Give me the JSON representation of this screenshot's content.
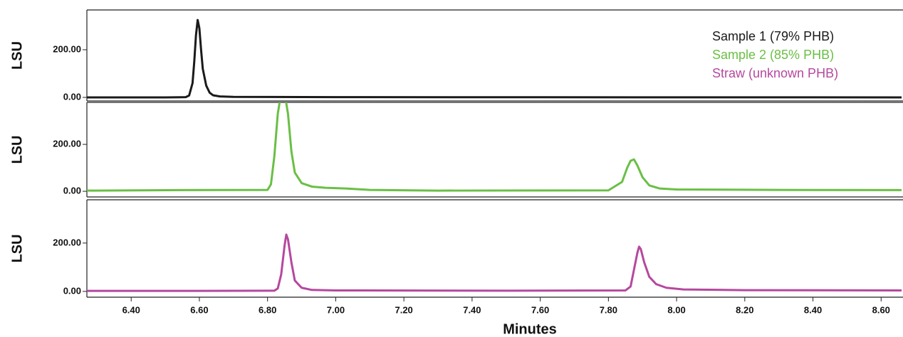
{
  "chart_data": [
    {
      "type": "line",
      "ylabel": "LSU",
      "legend": "upper right",
      "xlim": [
        6.27,
        8.66
      ],
      "ylim": [
        -15,
        367
      ],
      "yticks": [
        {
          "value": 0,
          "label": "0.00"
        },
        {
          "value": 200,
          "label": "200.00"
        }
      ],
      "x": [
        6.27,
        6.5,
        6.56,
        6.57,
        6.58,
        6.585,
        6.59,
        6.595,
        6.6,
        6.605,
        6.61,
        6.62,
        6.63,
        6.64,
        6.66,
        6.7,
        7.0,
        8.66
      ],
      "series": [
        {
          "name": "Sample 1 (79% PHB)",
          "color": "#1a1a1a",
          "values": [
            0,
            0,
            1,
            8,
            60,
            150,
            260,
            325,
            290,
            200,
            120,
            50,
            20,
            9,
            4,
            2,
            1,
            0
          ]
        }
      ]
    },
    {
      "type": "line",
      "ylabel": "LSU",
      "xlim": [
        6.27,
        8.66
      ],
      "ylim": [
        -24,
        379
      ],
      "yticks": [
        {
          "value": 0,
          "label": "0.00"
        },
        {
          "value": 200,
          "label": "200.00"
        }
      ],
      "x": [
        6.27,
        6.55,
        6.8,
        6.81,
        6.82,
        6.83,
        6.84,
        6.85,
        6.86,
        6.87,
        6.88,
        6.9,
        6.93,
        6.97,
        7.03,
        7.1,
        7.3,
        7.8,
        7.84,
        7.855,
        7.865,
        7.875,
        7.885,
        7.9,
        7.92,
        7.95,
        8.0,
        8.3,
        8.66
      ],
      "series": [
        {
          "name": "Sample 2 (85% PHB)",
          "color": "#6abf45",
          "values": [
            3,
            5,
            6,
            30,
            150,
            330,
            420,
            420,
            330,
            170,
            80,
            35,
            20,
            15,
            12,
            6,
            3,
            4,
            40,
            100,
            130,
            136,
            110,
            60,
            25,
            12,
            8,
            6,
            5
          ]
        }
      ]
    },
    {
      "type": "line",
      "ylabel": "LSU",
      "xlabel": "Minutes",
      "xlim": [
        6.27,
        8.66
      ],
      "ylim": [
        -24,
        379
      ],
      "yticks": [
        {
          "value": 0,
          "label": "0.00"
        },
        {
          "value": 200,
          "label": "200.00"
        }
      ],
      "xticks": [
        {
          "value": 6.4,
          "label": "6.40"
        },
        {
          "value": 6.6,
          "label": "6.60"
        },
        {
          "value": 6.8,
          "label": "6.80"
        },
        {
          "value": 7.0,
          "label": "7.00"
        },
        {
          "value": 7.2,
          "label": "7.20"
        },
        {
          "value": 7.4,
          "label": "7.40"
        },
        {
          "value": 7.6,
          "label": "7.60"
        },
        {
          "value": 7.8,
          "label": "7.80"
        },
        {
          "value": 8.0,
          "label": "8.00"
        },
        {
          "value": 8.2,
          "label": "8.20"
        },
        {
          "value": 8.4,
          "label": "8.40"
        },
        {
          "value": 8.6,
          "label": "8.60"
        }
      ],
      "x": [
        6.27,
        6.6,
        6.82,
        6.83,
        6.84,
        6.85,
        6.855,
        6.86,
        6.87,
        6.88,
        6.9,
        6.93,
        7.0,
        7.5,
        7.85,
        7.865,
        7.875,
        7.885,
        7.89,
        7.895,
        7.905,
        7.92,
        7.94,
        7.97,
        8.02,
        8.2,
        8.66
      ],
      "series": [
        {
          "name": "Straw (unknown PHB)",
          "color": "#b5489e",
          "values": [
            2,
            2,
            3,
            12,
            70,
            190,
            235,
            215,
            120,
            45,
            15,
            6,
            4,
            3,
            4,
            20,
            90,
            160,
            185,
            175,
            120,
            60,
            30,
            15,
            8,
            5,
            4
          ]
        }
      ]
    }
  ]
}
